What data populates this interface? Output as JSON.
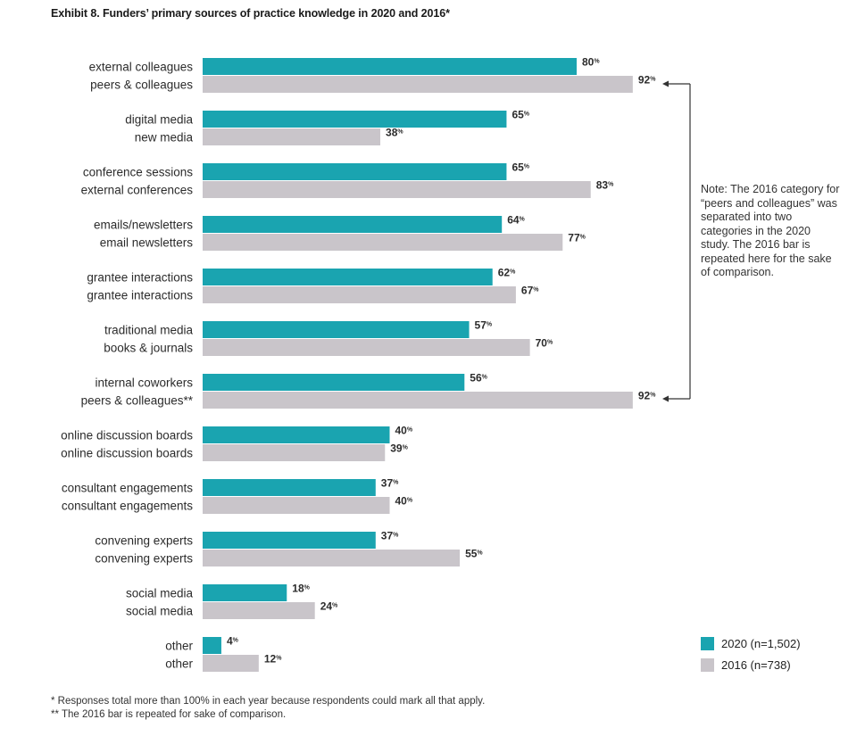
{
  "title": "Exhibit 8.  Funders’ primary sources of practice knowledge in 2020 and 2016*",
  "chart_data": {
    "type": "bar",
    "orientation": "horizontal",
    "title": "Exhibit 8.  Funders’ primary sources of practice knowledge in 2020 and 2016*",
    "unit": "%",
    "xlim": [
      0,
      100
    ],
    "grid": false,
    "legend_position": "bottom-right",
    "series": [
      {
        "name": "2020 (n=1,502)",
        "color": "#1aa4b0",
        "categories": [
          "external colleagues",
          "digital  media",
          "conference sessions",
          "emails/newsletters",
          "grantee interactions",
          "traditional media",
          "internal coworkers",
          "online discussion boards",
          "consultant engagements",
          "convening experts",
          "social media",
          "other"
        ],
        "values": [
          80,
          65,
          65,
          64,
          62,
          57,
          56,
          40,
          37,
          37,
          18,
          4
        ]
      },
      {
        "name": "2016 (n=738)",
        "color": "#c9c5ca",
        "categories": [
          "peers & colleagues",
          "new media",
          "external conferences",
          "email newsletters",
          "grantee interactions",
          "books & journals",
          "peers & colleagues**",
          "online discussion boards",
          "consultant engagements",
          "convening experts",
          "social media",
          "other"
        ],
        "values": [
          92,
          38,
          83,
          77,
          67,
          70,
          92,
          39,
          40,
          55,
          24,
          12
        ]
      }
    ]
  },
  "value_suffix": "%",
  "note": "Note: The 2016 category for “peers and colleagues” was separated into two categories in the 2020 study. The 2016 bar is repeated here for the sake of comparison.",
  "legend": {
    "items": [
      {
        "label": "2020 (n=1,502)",
        "color": "#1aa4b0"
      },
      {
        "label": "2016 (n=738)",
        "color": "#c9c5ca"
      }
    ]
  },
  "footnotes": {
    "line1": "* Responses total more than 100% in each year because respondents could mark all that apply.",
    "line2": "** The 2016 bar is repeated for sake of comparison."
  }
}
